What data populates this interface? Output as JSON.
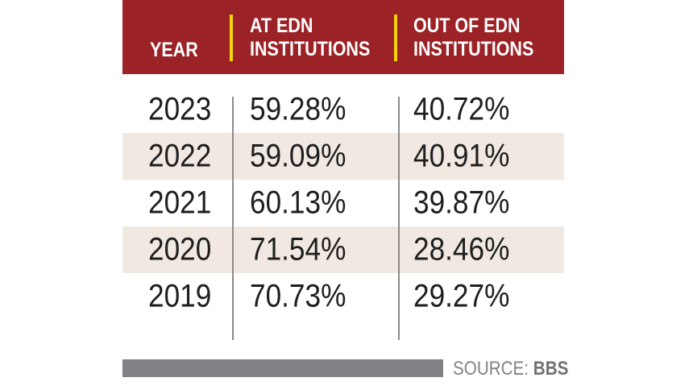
{
  "chart_data": {
    "type": "table",
    "columns": [
      "YEAR",
      "AT EDN\nINSTITUTIONS",
      "OUT OF EDN\nINSTITUTIONS"
    ],
    "rows": [
      {
        "year": "2023",
        "at_edn": "59.28%",
        "out_edn": "40.72%"
      },
      {
        "year": "2022",
        "at_edn": "59.09%",
        "out_edn": "40.91%"
      },
      {
        "year": "2021",
        "at_edn": "60.13%",
        "out_edn": "39.87%"
      },
      {
        "year": "2020",
        "at_edn": "71.54%",
        "out_edn": "28.46%"
      },
      {
        "year": "2019",
        "at_edn": "70.73%",
        "out_edn": "29.27%"
      }
    ]
  },
  "header": {
    "year": "YEAR",
    "at_edn_line1": "AT EDN",
    "at_edn_line2": "INSTITUTIONS",
    "out_edn_line1": "OUT OF EDN",
    "out_edn_line2": "INSTITUTIONS"
  },
  "footer": {
    "source_label": "SOURCE:",
    "source_value": "BBS"
  },
  "colors": {
    "header_bg": "#9b2226",
    "header_accent": "#f2d20a",
    "row_alt": "#f1e9e1",
    "footer_bar": "#808285"
  }
}
